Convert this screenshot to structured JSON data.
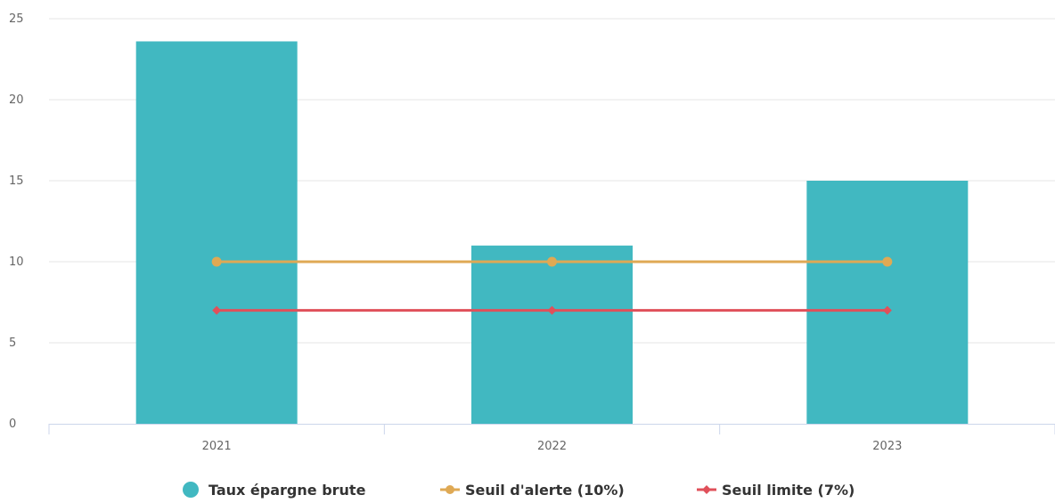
{
  "chart_data": {
    "type": "bar",
    "categories": [
      "2021",
      "2022",
      "2023"
    ],
    "ylim": [
      0,
      25
    ],
    "yticks": [
      0,
      5,
      10,
      15,
      20,
      25
    ],
    "grid": true,
    "legend_position": "bottom-center",
    "series": [
      {
        "name": "Taux épargne brute",
        "type": "bar",
        "color": "#41b8c1",
        "marker": "circle",
        "values": [
          23.6,
          11.0,
          15.0
        ]
      },
      {
        "name": "Seuil d'alerte (10%)",
        "type": "line",
        "color": "#dfa954",
        "marker": "circle",
        "values": [
          10,
          10,
          10
        ]
      },
      {
        "name": "Seuil limite (7%)",
        "type": "line",
        "color": "#e0505a",
        "marker": "diamond",
        "values": [
          7,
          7,
          7
        ]
      }
    ]
  }
}
